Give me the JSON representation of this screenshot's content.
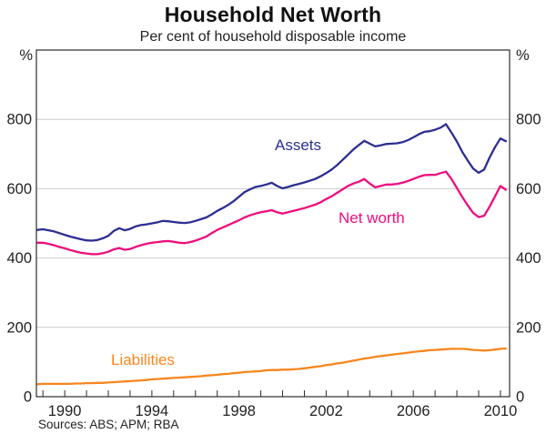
{
  "header": {
    "title": "Household Net Worth",
    "subtitle": "Per cent of household disposable income"
  },
  "footer": {
    "sources": "Sources: ABS; APM; RBA"
  },
  "chart_data": {
    "type": "line",
    "title": "Household Net Worth",
    "subtitle": "Per cent of household disposable income",
    "unit_left": "%",
    "unit_right": "%",
    "ylim": [
      0,
      1000
    ],
    "y_ticks": [
      0,
      200,
      400,
      600,
      800
    ],
    "grid": "horizontal-gridlines-at-y-ticks-except-0",
    "legend_position": "inline-labels-on-chart",
    "xlim": [
      1988.7,
      2010.42
    ],
    "x_labeled_ticks": [
      1990,
      1994,
      1998,
      2002,
      2006,
      2010
    ],
    "x_minor_ticks": {
      "start": 1989,
      "end": 2010,
      "step": 1
    },
    "x_start": 1988.75,
    "x_step": 0.25,
    "colors": {
      "assets": "#2b2f90",
      "net_worth": "#ee0d7d",
      "liabilities": "#f6861f",
      "gridline": "#cccccc",
      "frame": "#2b2b2b",
      "text": "#222222"
    },
    "series": [
      {
        "name": "Assets",
        "color": "#2b2f90",
        "values": [
          481,
          483,
          480,
          477,
          472,
          467,
          462,
          458,
          454,
          451,
          450,
          452,
          457,
          464,
          478,
          486,
          480,
          484,
          491,
          495,
          497,
          500,
          503,
          507,
          506,
          504,
          502,
          501,
          503,
          507,
          512,
          517,
          526,
          536,
          544,
          553,
          564,
          577,
          590,
          598,
          605,
          608,
          612,
          617,
          608,
          601,
          605,
          610,
          614,
          618,
          623,
          628,
          636,
          645,
          655,
          668,
          683,
          698,
          713,
          726,
          738,
          730,
          722,
          725,
          729,
          730,
          731,
          734,
          740,
          748,
          757,
          764,
          766,
          770,
          776,
          786,
          762,
          736,
          706,
          681,
          658,
          646,
          655,
          690,
          720,
          745,
          737
        ]
      },
      {
        "name": "Net worth",
        "color": "#ee0d7d",
        "values": [
          444,
          444,
          441,
          437,
          432,
          428,
          423,
          419,
          415,
          413,
          411,
          411,
          414,
          418,
          425,
          429,
          424,
          426,
          432,
          437,
          441,
          444,
          446,
          448,
          449,
          447,
          444,
          443,
          446,
          450,
          456,
          462,
          472,
          481,
          488,
          495,
          502,
          509,
          517,
          523,
          528,
          532,
          535,
          538,
          532,
          528,
          532,
          536,
          540,
          544,
          549,
          554,
          561,
          570,
          578,
          588,
          598,
          608,
          615,
          620,
          628,
          615,
          604,
          608,
          612,
          612,
          614,
          617,
          622,
          628,
          634,
          639,
          640,
          640,
          645,
          649,
          628,
          602,
          576,
          552,
          530,
          518,
          522,
          548,
          578,
          608,
          597
        ]
      },
      {
        "name": "Liabilities",
        "color": "#f6861f",
        "values": [
          36,
          37,
          37,
          37,
          37,
          37,
          37,
          38,
          38,
          39,
          39,
          40,
          40,
          41,
          42,
          43,
          44,
          45,
          46,
          47,
          48,
          50,
          51,
          52,
          53,
          54,
          55,
          56,
          57,
          58,
          59,
          61,
          62,
          63,
          65,
          66,
          68,
          69,
          71,
          72,
          73,
          74,
          76,
          77,
          77,
          78,
          78,
          79,
          80,
          82,
          84,
          86,
          88,
          91,
          93,
          96,
          98,
          101,
          104,
          107,
          110,
          112,
          115,
          117,
          119,
          121,
          123,
          125,
          127,
          129,
          131,
          132,
          134,
          135,
          136,
          137,
          138,
          138,
          138,
          137,
          135,
          134,
          133,
          134,
          136,
          138,
          139
        ]
      }
    ]
  }
}
